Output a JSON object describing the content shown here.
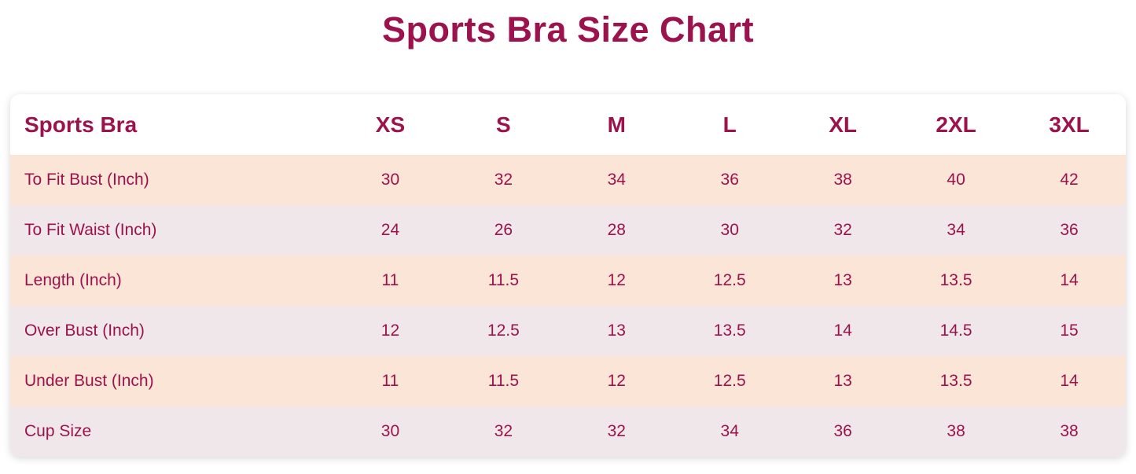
{
  "title": "Sports Bra Size Chart",
  "colors": {
    "accent": "#9c124d",
    "row_peach": "#fbe5d6",
    "row_gray": "#f0e7eb",
    "card_bg": "#ffffff",
    "page_bg": "#ffffff"
  },
  "chart_data": {
    "type": "table",
    "title": "Sports Bra Size Chart",
    "columns": [
      "Sports Bra",
      "XS",
      "S",
      "M",
      "L",
      "XL",
      "2XL",
      "3XL"
    ],
    "rows": [
      {
        "label": "To Fit Bust (Inch)",
        "values": [
          "30",
          "32",
          "34",
          "36",
          "38",
          "40",
          "42"
        ]
      },
      {
        "label": "To Fit Waist (Inch)",
        "values": [
          "24",
          "26",
          "28",
          "30",
          "32",
          "34",
          "36"
        ]
      },
      {
        "label": "Length (Inch)",
        "values": [
          "11",
          "11.5",
          "12",
          "12.5",
          "13",
          "13.5",
          "14"
        ]
      },
      {
        "label": "Over Bust (Inch)",
        "values": [
          "12",
          "12.5",
          "13",
          "13.5",
          "14",
          "14.5",
          "15"
        ]
      },
      {
        "label": "Under Bust (Inch)",
        "values": [
          "11",
          "11.5",
          "12",
          "12.5",
          "13",
          "13.5",
          "14"
        ]
      },
      {
        "label": "Cup Size",
        "values": [
          "30",
          "32",
          "32",
          "34",
          "36",
          "38",
          "38"
        ]
      }
    ],
    "layout": {
      "row_striping": [
        "peach",
        "gray",
        "peach",
        "gray",
        "peach",
        "gray"
      ],
      "header_background": "white",
      "grid": false
    }
  }
}
